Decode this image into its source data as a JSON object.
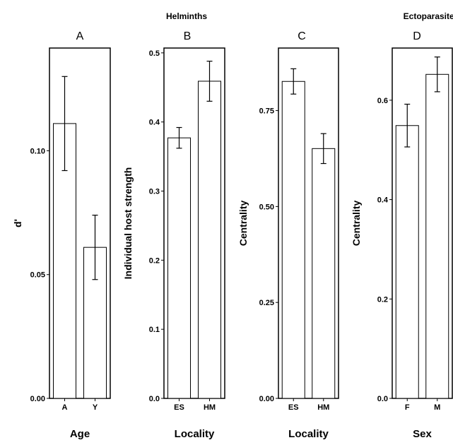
{
  "group_titles": {
    "helminths": "Helminths",
    "ectoparasites": "Ectoparasites"
  },
  "chart_data": [
    {
      "type": "bar",
      "panel": "A",
      "title": "A",
      "xlabel": "Age",
      "ylabel": "d'",
      "categories": [
        "A",
        "Y"
      ],
      "values": [
        0.111,
        0.061
      ],
      "errors": [
        0.019,
        0.013
      ],
      "ylim": [
        0,
        0.1415
      ],
      "yticks": [
        0.0,
        0.05,
        0.1
      ],
      "yticklabels": [
        "0.00",
        "0.05",
        "0.10"
      ]
    },
    {
      "type": "bar",
      "panel": "B",
      "title": "B",
      "xlabel": "Locality",
      "ylabel": "Individual host strength",
      "categories": [
        "ES",
        "HM"
      ],
      "values": [
        0.377,
        0.459
      ],
      "errors": [
        0.015,
        0.029
      ],
      "ylim": [
        0,
        0.507
      ],
      "yticks": [
        0.0,
        0.1,
        0.2,
        0.3,
        0.4,
        0.5
      ],
      "yticklabels": [
        "0.0",
        "0.1",
        "0.2",
        "0.3",
        "0.4",
        "0.5"
      ]
    },
    {
      "type": "bar",
      "panel": "C",
      "title": "C",
      "xlabel": "Locality",
      "ylabel": "Centrality",
      "categories": [
        "ES",
        "HM"
      ],
      "values": [
        0.826,
        0.651
      ],
      "errors": [
        0.033,
        0.039
      ],
      "ylim": [
        0,
        0.913
      ],
      "yticks": [
        0.0,
        0.25,
        0.5,
        0.75
      ],
      "yticklabels": [
        "0.00",
        "0.25",
        "0.50",
        "0.75"
      ]
    },
    {
      "type": "bar",
      "panel": "D",
      "title": "D",
      "xlabel": "Sex",
      "ylabel": "Centrality",
      "categories": [
        "F",
        "M"
      ],
      "values": [
        0.549,
        0.652
      ],
      "errors": [
        0.043,
        0.035
      ],
      "ylim": [
        0,
        0.705
      ],
      "yticks": [
        0.0,
        0.2,
        0.4,
        0.6
      ],
      "yticklabels": [
        "0.0",
        "0.2",
        "0.4",
        "0.6"
      ]
    }
  ]
}
